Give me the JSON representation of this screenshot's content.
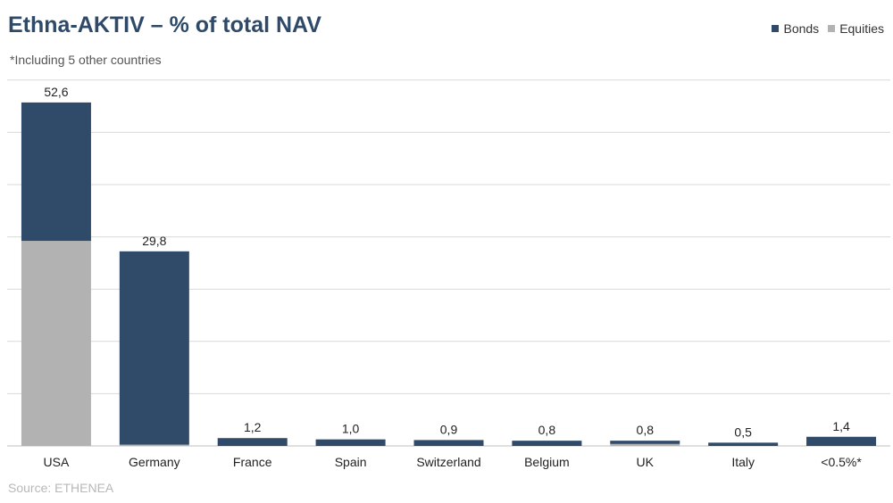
{
  "chart_data": {
    "type": "bar",
    "stacked": true,
    "title": "Ethna-AKTIV – % of total NAV",
    "subtitle": "*Including 5 other countries",
    "source": "Source: ETHENEA",
    "categories": [
      "USA",
      "Germany",
      "France",
      "Spain",
      "Switzerland",
      "Belgium",
      "UK",
      "Italy",
      "<0.5%*"
    ],
    "totals": [
      "52,6",
      "29,8",
      "1,2",
      "1,0",
      "0,9",
      "0,8",
      "0,8",
      "0,5",
      "1,4"
    ],
    "series": [
      {
        "name": "Equities",
        "color": "#b2b2b2",
        "values": [
          31.4,
          0.2,
          0,
          0,
          0,
          0,
          0.3,
          0,
          0
        ]
      },
      {
        "name": "Bonds",
        "color": "#2f4b69",
        "values": [
          21.2,
          29.6,
          1.2,
          1.0,
          0.9,
          0.8,
          0.5,
          0.5,
          1.4
        ]
      }
    ],
    "legend": [
      "Bonds",
      "Equities"
    ],
    "ylim": [
      0,
      56
    ],
    "grid": true,
    "legend_position": "top-right"
  }
}
